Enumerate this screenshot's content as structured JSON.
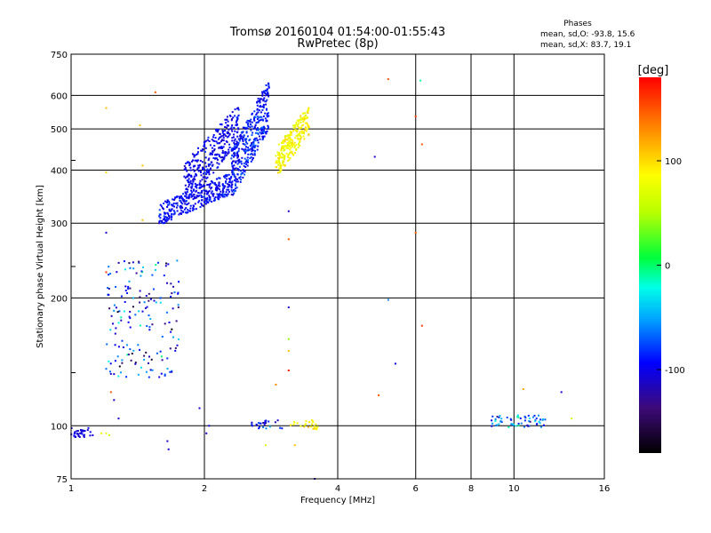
{
  "chart_data": {
    "type": "scatter",
    "title": "Tromsø 20160104 01:54:00-01:55:43",
    "subtitle": "RwPretec (8p)",
    "stats": {
      "heading": "Phases",
      "line1": "mean, sd,O:  -93.8, 15.6",
      "line2": "mean, sd,X:  83.7, 19.1"
    },
    "xlabel": "Frequency [MHz]",
    "ylabel": "Stationary phase Virtual Height [km]",
    "xscale": "log",
    "yscale": "log",
    "xlim": [
      1,
      16
    ],
    "ylim": [
      75,
      750
    ],
    "xticks": [
      1,
      2,
      4,
      6,
      8,
      10,
      16
    ],
    "xtick_labels": [
      "1",
      "2",
      "4",
      "6",
      "8",
      "10",
      "16"
    ],
    "yticks": [
      75,
      100,
      200,
      300,
      400,
      500,
      600,
      750
    ],
    "ytick_labels": [
      "75",
      "100",
      "200",
      "300",
      "400",
      "500",
      "600",
      "750"
    ],
    "grid": true,
    "colorbar": {
      "label": "[deg]",
      "range": [
        -180,
        180
      ],
      "ticks": [
        100,
        0,
        -100
      ],
      "tick_labels": [
        "100",
        "0",
        "-100"
      ]
    },
    "clusters": [
      {
        "name": "F trace O mode low",
        "xrange": [
          1.58,
          2.3
        ],
        "yrange": [
          300,
          390
        ],
        "phase": -95,
        "phase_sd": 15,
        "count": 330
      },
      {
        "name": "F trace O mode mid",
        "xrange": [
          1.8,
          2.4
        ],
        "yrange": [
          340,
          560
        ],
        "phase": -100,
        "phase_sd": 15,
        "count": 330
      },
      {
        "name": "F trace O mode high",
        "xrange": [
          2.3,
          2.8
        ],
        "yrange": [
          350,
          640
        ],
        "phase": -90,
        "phase_sd": 20,
        "count": 380
      },
      {
        "name": "F trace X mode",
        "xrange": [
          2.9,
          3.45
        ],
        "yrange": [
          390,
          560
        ],
        "phase": 85,
        "phase_sd": 20,
        "count": 240
      },
      {
        "name": "F lower branch mixed",
        "xrange": [
          1.2,
          1.75
        ],
        "yrange": [
          130,
          245
        ],
        "phase": -90,
        "phase_sd": 60,
        "count": 170
      },
      {
        "name": "E trace low frequency",
        "xrange": [
          1.0,
          1.12
        ],
        "yrange": [
          94,
          99
        ],
        "phase": -105,
        "phase_sd": 10,
        "count": 35
      },
      {
        "name": "E trace mid frequency",
        "xrange": [
          2.55,
          3.0
        ],
        "yrange": [
          98,
          103
        ],
        "phase": -95,
        "phase_sd": 30,
        "count": 25
      },
      {
        "name": "E trace X mid frequency",
        "xrange": [
          3.1,
          3.6
        ],
        "yrange": [
          98,
          103
        ],
        "phase": 90,
        "phase_sd": 20,
        "count": 25
      },
      {
        "name": "E trace high frequency",
        "xrange": [
          8.9,
          11.8
        ],
        "yrange": [
          99,
          106
        ],
        "phase": -60,
        "phase_sd": 50,
        "count": 60
      }
    ],
    "scattered_points": [
      {
        "x": 1.65,
        "y": 92,
        "phase": -110
      },
      {
        "x": 1.66,
        "y": 88,
        "phase": -110
      },
      {
        "x": 1.95,
        "y": 110,
        "phase": -105
      },
      {
        "x": 2.05,
        "y": 100,
        "phase": -105
      },
      {
        "x": 1.2,
        "y": 560,
        "phase": 110
      },
      {
        "x": 1.43,
        "y": 510,
        "phase": 110
      },
      {
        "x": 1.55,
        "y": 610,
        "phase": 150
      },
      {
        "x": 1.2,
        "y": 395,
        "phase": 100
      },
      {
        "x": 1.45,
        "y": 410,
        "phase": 110
      },
      {
        "x": 1.45,
        "y": 305,
        "phase": 110
      },
      {
        "x": 1.2,
        "y": 285,
        "phase": -110
      },
      {
        "x": 1.2,
        "y": 230,
        "phase": 160
      },
      {
        "x": 3.1,
        "y": 320,
        "phase": -110
      },
      {
        "x": 3.1,
        "y": 275,
        "phase": 150
      },
      {
        "x": 3.1,
        "y": 190,
        "phase": -110
      },
      {
        "x": 3.1,
        "y": 160,
        "phase": 40
      },
      {
        "x": 3.1,
        "y": 150,
        "phase": 110
      },
      {
        "x": 3.1,
        "y": 135,
        "phase": 170
      },
      {
        "x": 2.9,
        "y": 125,
        "phase": 130
      },
      {
        "x": 3.2,
        "y": 90,
        "phase": 110
      },
      {
        "x": 2.75,
        "y": 90,
        "phase": 70
      },
      {
        "x": 3.55,
        "y": 75,
        "phase": -110
      },
      {
        "x": 4.85,
        "y": 430,
        "phase": -110
      },
      {
        "x": 5.2,
        "y": 655,
        "phase": 150
      },
      {
        "x": 6.0,
        "y": 535,
        "phase": 160
      },
      {
        "x": 6.15,
        "y": 650,
        "phase": -10
      },
      {
        "x": 6.2,
        "y": 460,
        "phase": 150
      },
      {
        "x": 6.0,
        "y": 285,
        "phase": 150
      },
      {
        "x": 6.2,
        "y": 172,
        "phase": 160
      },
      {
        "x": 5.2,
        "y": 198,
        "phase": -60
      },
      {
        "x": 5.4,
        "y": 140,
        "phase": -100
      },
      {
        "x": 4.95,
        "y": 118,
        "phase": 150
      },
      {
        "x": 10.5,
        "y": 122,
        "phase": 120
      },
      {
        "x": 12.8,
        "y": 120,
        "phase": -110
      },
      {
        "x": 13.5,
        "y": 104,
        "phase": 60
      },
      {
        "x": 1.2,
        "y": 96,
        "phase": 80
      },
      {
        "x": 1.17,
        "y": 96,
        "phase": 80
      },
      {
        "x": 1.22,
        "y": 95,
        "phase": 60
      },
      {
        "x": 1.23,
        "y": 120,
        "phase": 150
      },
      {
        "x": 1.25,
        "y": 115,
        "phase": -110
      },
      {
        "x": 1.28,
        "y": 104,
        "phase": -110
      },
      {
        "x": 2.02,
        "y": 96,
        "phase": -110
      }
    ]
  }
}
